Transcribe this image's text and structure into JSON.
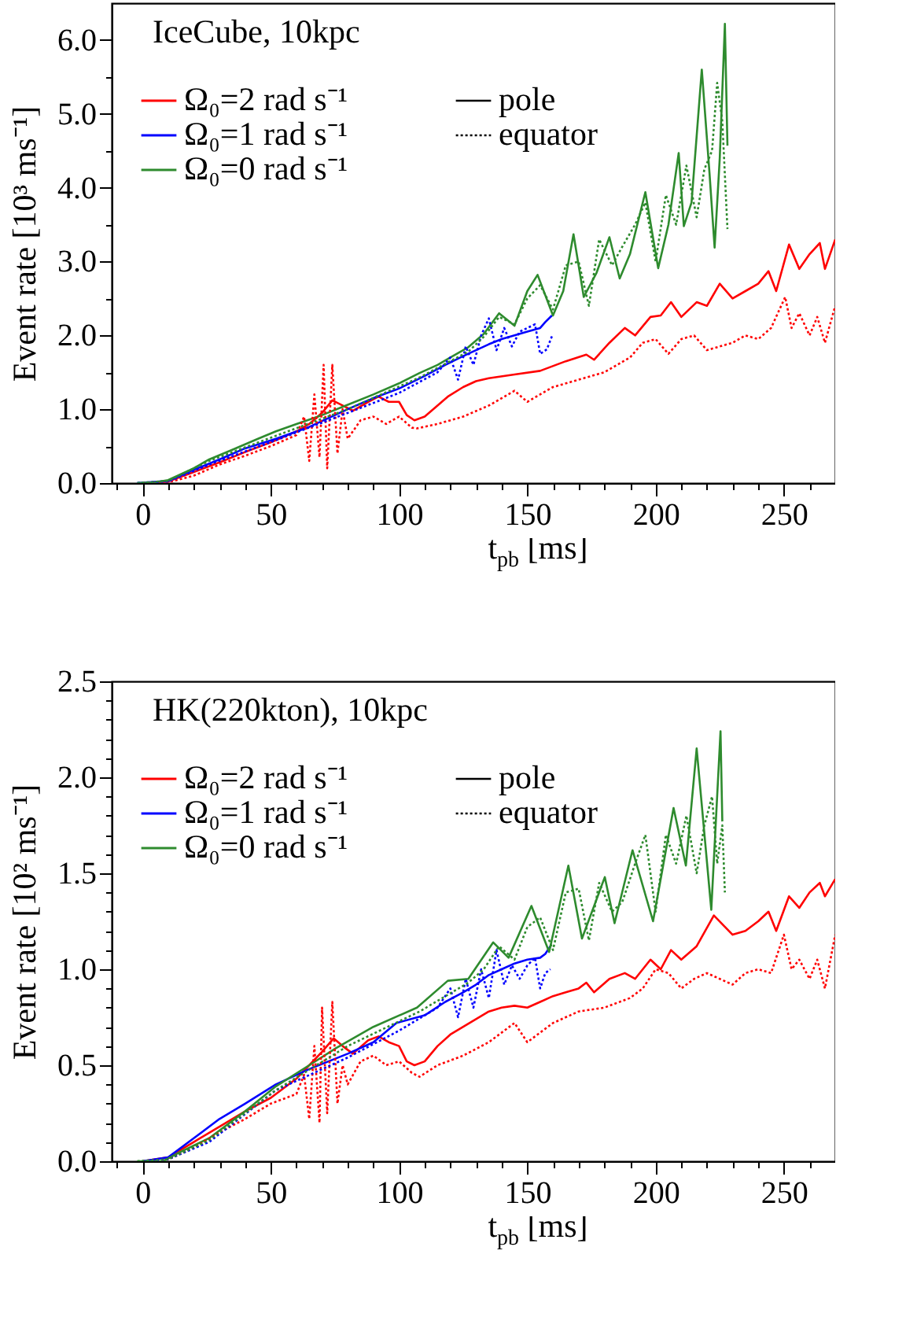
{
  "chart_data": [
    {
      "type": "line",
      "title": "IceCube, 10kpc",
      "xlabel": "t$_{pb}$ [ms]",
      "ylabel": "Event rate [10³ ms⁻¹]",
      "legend": "top left",
      "annotations": [
        "pole",
        "equator"
      ],
      "xlim": [
        -12,
        270
      ],
      "ylim": [
        0,
        6.5
      ],
      "xticks": [
        {
          "value": -10,
          "label": null
        },
        0,
        {
          "value": 10,
          "label": null
        },
        {
          "value": 20,
          "label": null
        },
        {
          "value": 30,
          "label": null
        },
        {
          "value": 40,
          "label": null
        },
        50,
        {
          "value": 60,
          "label": null
        },
        {
          "value": 70,
          "label": null
        },
        {
          "value": 80,
          "label": null
        },
        {
          "value": 90,
          "label": null
        },
        100,
        {
          "value": 110,
          "label": null
        },
        {
          "value": 120,
          "label": null
        },
        {
          "value": 130,
          "label": null
        },
        {
          "value": 140,
          "label": null
        },
        150,
        {
          "value": 160,
          "label": null
        },
        {
          "value": 170,
          "label": null
        },
        {
          "value": 180,
          "label": null
        },
        {
          "value": 190,
          "label": null
        },
        200,
        {
          "value": 210,
          "label": null
        },
        {
          "value": 220,
          "label": null
        },
        {
          "value": 230,
          "label": null
        },
        {
          "value": 240,
          "label": null
        },
        250,
        {
          "value": 260,
          "label": null
        }
      ],
      "yticks": [
        {
          "value": 0,
          "label": "0.0"
        },
        {
          "value": 0.5,
          "label": null
        },
        {
          "value": 1,
          "label": "1.0"
        },
        {
          "value": 1.5,
          "label": null
        },
        {
          "value": 2,
          "label": "2.0"
        },
        {
          "value": 2.5,
          "label": null
        },
        {
          "value": 3,
          "label": "3.0"
        },
        {
          "value": 3.5,
          "label": null
        },
        {
          "value": 4,
          "label": "4.0"
        },
        {
          "value": 4.5,
          "label": null
        },
        {
          "value": 5,
          "label": "5.0"
        },
        {
          "value": 5.5,
          "label": null
        },
        {
          "value": 6,
          "label": "6.0"
        }
      ],
      "series": [
        {
          "name": "Ω₀=2 rad s⁻¹",
          "color": "#ff0000",
          "line_style": "solid",
          "x": [
            0,
            10,
            20,
            30,
            40,
            50,
            60,
            65,
            70,
            74,
            78,
            82,
            88,
            92,
            96,
            100,
            103,
            106,
            110,
            115,
            119,
            125,
            130,
            135,
            145,
            155,
            165,
            173,
            176,
            182,
            188,
            192,
            198,
            202,
            206,
            210,
            216,
            220,
            225,
            230,
            235,
            240,
            244,
            247,
            252,
            256,
            260,
            264,
            266,
            270
          ],
          "values": [
            0,
            0.02,
            0.15,
            0.28,
            0.42,
            0.55,
            0.7,
            0.8,
            0.95,
            1.12,
            1.05,
            0.98,
            1.1,
            1.17,
            1.1,
            1.1,
            0.92,
            0.85,
            0.9,
            1.05,
            1.17,
            1.3,
            1.38,
            1.42,
            1.47,
            1.52,
            1.65,
            1.74,
            1.67,
            1.9,
            2.1,
            2.0,
            2.25,
            2.27,
            2.45,
            2.25,
            2.45,
            2.4,
            2.7,
            2.5,
            2.6,
            2.7,
            2.87,
            2.6,
            3.23,
            2.9,
            3.1,
            3.25,
            2.9,
            3.3
          ]
        },
        {
          "name": "Ω₀=1 rad s⁻¹",
          "color": "#0000ff",
          "line_style": "solid",
          "x": [
            -2,
            10,
            20,
            30,
            40,
            52,
            65,
            80,
            90,
            100,
            110,
            118,
            125,
            130,
            135,
            140,
            145,
            150,
            155,
            157,
            159.6
          ],
          "values": [
            0,
            0.03,
            0.18,
            0.32,
            0.47,
            0.6,
            0.76,
            1.0,
            1.15,
            1.28,
            1.45,
            1.6,
            1.72,
            1.8,
            1.88,
            1.95,
            2.0,
            2.05,
            2.1,
            2.18,
            2.27
          ]
        },
        {
          "name": "Ω₀=0 rad s⁻¹",
          "color": "#2e8b2e",
          "line_style": "solid",
          "x": [
            -2,
            5,
            10,
            15,
            20,
            26,
            35,
            45,
            52,
            60,
            70,
            80,
            90,
            100,
            108,
            115,
            120,
            127,
            133,
            139,
            145,
            150,
            154,
            160,
            164,
            168,
            172,
            177,
            182,
            186,
            190,
            196,
            201,
            205,
            209,
            211,
            214,
            218,
            221,
            223,
            225,
            227,
            228
          ],
          "values": [
            0,
            0.01,
            0.04,
            0.12,
            0.2,
            0.32,
            0.45,
            0.6,
            0.7,
            0.8,
            0.92,
            1.06,
            1.2,
            1.35,
            1.49,
            1.6,
            1.7,
            1.84,
            2.02,
            2.3,
            2.13,
            2.6,
            2.82,
            2.27,
            2.6,
            3.37,
            2.52,
            2.85,
            3.33,
            2.77,
            3.1,
            3.94,
            2.91,
            3.5,
            4.47,
            3.48,
            3.8,
            5.6,
            4.2,
            3.19,
            4.4,
            6.22,
            4.57
          ]
        },
        {
          "color": "#ff0000",
          "line_style": "dotted",
          "x": [
            0,
            10,
            20,
            30,
            40,
            50,
            60,
            63,
            65,
            67,
            69,
            70.6,
            72,
            74,
            76,
            78,
            80,
            85,
            90,
            95,
            100,
            105,
            107,
            115,
            125,
            135,
            145,
            150,
            160,
            170,
            180,
            190,
            195,
            200,
            205,
            210,
            215,
            220,
            225,
            230,
            235,
            240,
            245,
            250.5,
            253,
            256,
            260,
            263,
            266,
            270
          ],
          "values": [
            0,
            0.01,
            0.1,
            0.25,
            0.37,
            0.5,
            0.65,
            0.9,
            0.3,
            1.2,
            0.35,
            1.6,
            0.2,
            1.6,
            0.4,
            1.0,
            0.6,
            0.85,
            0.9,
            0.8,
            0.9,
            0.75,
            0.74,
            0.8,
            0.9,
            1.05,
            1.25,
            1.1,
            1.3,
            1.4,
            1.5,
            1.7,
            1.9,
            1.95,
            1.75,
            1.95,
            2.0,
            1.8,
            1.85,
            1.9,
            2.0,
            1.95,
            2.1,
            2.52,
            2.1,
            2.3,
            2.0,
            2.25,
            1.9,
            2.4
          ]
        },
        {
          "color": "#0000ff",
          "line_style": "dotted",
          "x": [
            -2,
            10,
            26,
            52,
            80,
            100,
            115,
            120,
            123,
            126,
            129,
            132,
            135,
            138,
            141,
            144,
            147,
            150,
            153,
            155,
            157.6,
            159.6
          ],
          "values": [
            0,
            0.02,
            0.25,
            0.58,
            0.95,
            1.22,
            1.5,
            1.7,
            1.4,
            1.85,
            1.6,
            2.0,
            2.23,
            1.8,
            2.1,
            1.85,
            2.05,
            2.1,
            2.15,
            1.75,
            1.81,
            1.99
          ]
        },
        {
          "color": "#2e8b2e",
          "line_style": "dotted",
          "x": [
            -2,
            10,
            26,
            52,
            80,
            108,
            127,
            133,
            139,
            145,
            150,
            155,
            160,
            165,
            170,
            174,
            178,
            183,
            187,
            192,
            196,
            200,
            204,
            208,
            212,
            216,
            219,
            222,
            224,
            226,
            228
          ],
          "values": [
            0,
            0.03,
            0.3,
            0.64,
            1.0,
            1.43,
            1.78,
            1.98,
            2.25,
            2.15,
            2.5,
            2.68,
            2.35,
            2.95,
            3.0,
            2.4,
            3.3,
            2.95,
            3.2,
            3.5,
            3.8,
            3.0,
            3.9,
            3.5,
            4.3,
            3.6,
            4.25,
            4.5,
            5.42,
            4.9,
            3.44
          ]
        }
      ]
    },
    {
      "type": "line",
      "title": "HK(220kton), 10kpc",
      "xlabel": "t$_{pb}$ [ms]",
      "ylabel": "Event rate [10² ms⁻¹]",
      "legend": "top left",
      "annotations": [
        "pole",
        "equator"
      ],
      "xlim": [
        -12,
        270
      ],
      "ylim": [
        0,
        2.5
      ],
      "xticks": [
        {
          "value": -10,
          "label": null
        },
        0,
        {
          "value": 10,
          "label": null
        },
        {
          "value": 20,
          "label": null
        },
        {
          "value": 30,
          "label": null
        },
        {
          "value": 40,
          "label": null
        },
        50,
        {
          "value": 60,
          "label": null
        },
        {
          "value": 70,
          "label": null
        },
        {
          "value": 80,
          "label": null
        },
        {
          "value": 90,
          "label": null
        },
        100,
        {
          "value": 110,
          "label": null
        },
        {
          "value": 120,
          "label": null
        },
        {
          "value": 130,
          "label": null
        },
        {
          "value": 140,
          "label": null
        },
        150,
        {
          "value": 160,
          "label": null
        },
        {
          "value": 170,
          "label": null
        },
        {
          "value": 180,
          "label": null
        },
        {
          "value": 190,
          "label": null
        },
        200,
        {
          "value": 210,
          "label": null
        },
        {
          "value": 220,
          "label": null
        },
        {
          "value": 230,
          "label": null
        },
        {
          "value": 240,
          "label": null
        },
        250,
        {
          "value": 260,
          "label": null
        }
      ],
      "yticks": [
        {
          "value": 0,
          "label": "0.0"
        },
        {
          "value": 0.1,
          "label": null
        },
        {
          "value": 0.2,
          "label": null
        },
        {
          "value": 0.3,
          "label": null
        },
        {
          "value": 0.4,
          "label": null
        },
        {
          "value": 0.5,
          "label": "0.5"
        },
        {
          "value": 0.6,
          "label": null
        },
        {
          "value": 0.7,
          "label": null
        },
        {
          "value": 0.8,
          "label": null
        },
        {
          "value": 0.9,
          "label": null
        },
        {
          "value": 1,
          "label": "1.0"
        },
        {
          "value": 1.1,
          "label": null
        },
        {
          "value": 1.2,
          "label": null
        },
        {
          "value": 1.3,
          "label": null
        },
        {
          "value": 1.4,
          "label": null
        },
        {
          "value": 1.5,
          "label": "1.5"
        },
        {
          "value": 1.6,
          "label": null
        },
        {
          "value": 1.7,
          "label": null
        },
        {
          "value": 1.8,
          "label": null
        },
        {
          "value": 1.9,
          "label": null
        },
        {
          "value": 2,
          "label": "2.0"
        },
        {
          "value": 2.1,
          "label": null
        },
        {
          "value": 2.2,
          "label": null
        },
        {
          "value": 2.3,
          "label": null
        },
        {
          "value": 2.4,
          "label": null
        },
        {
          "value": 2.5,
          "label": "2.5"
        }
      ],
      "series": [
        {
          "name": "Ω₀=2 rad s⁻¹",
          "color": "#ff0000",
          "line_style": "solid",
          "x": [
            0,
            10,
            20,
            30,
            40,
            50,
            60,
            65,
            70,
            74.5,
            78,
            82,
            88,
            92,
            96,
            100,
            103,
            106,
            110,
            115,
            120,
            125,
            130,
            135,
            140,
            145,
            150,
            155,
            160,
            165,
            170,
            173,
            176,
            182,
            188,
            192,
            198,
            202,
            206,
            210,
            216,
            222.7,
            230,
            235,
            240,
            244,
            247,
            252,
            256,
            260,
            264,
            266,
            270
          ],
          "values": [
            0,
            0.02,
            0.1,
            0.18,
            0.26,
            0.33,
            0.43,
            0.5,
            0.57,
            0.64,
            0.6,
            0.56,
            0.63,
            0.65,
            0.62,
            0.6,
            0.52,
            0.5,
            0.52,
            0.6,
            0.66,
            0.7,
            0.74,
            0.78,
            0.8,
            0.81,
            0.8,
            0.83,
            0.86,
            0.88,
            0.9,
            0.93,
            0.88,
            0.95,
            0.98,
            0.95,
            1.05,
            1.0,
            1.1,
            1.05,
            1.12,
            1.28,
            1.18,
            1.2,
            1.25,
            1.3,
            1.2,
            1.38,
            1.32,
            1.4,
            1.45,
            1.38,
            1.47
          ]
        },
        {
          "name": "Ω₀=1 rad s⁻¹",
          "color": "#0000ff",
          "line_style": "solid",
          "x": [
            0,
            10,
            20,
            30,
            40,
            52,
            65,
            80,
            90,
            99,
            110,
            118,
            125,
            130,
            135,
            140,
            145,
            150,
            155,
            157,
            159
          ],
          "values": [
            0,
            0.02,
            0.12,
            0.22,
            0.3,
            0.4,
            0.48,
            0.56,
            0.62,
            0.72,
            0.76,
            0.83,
            0.88,
            0.92,
            0.97,
            1.0,
            1.03,
            1.05,
            1.06,
            1.08,
            1.12
          ]
        },
        {
          "name": "Ω₀=0 rad s⁻¹",
          "color": "#2e8b2e",
          "line_style": "solid",
          "x": [
            -2,
            8,
            15,
            26,
            40,
            52,
            65,
            75.5,
            90,
            107,
            119,
            127,
            136.7,
            142.7,
            151.6,
            158.5,
            166,
            171.3,
            180.2,
            184,
            191,
            199,
            207,
            211.8,
            216,
            221.7,
            225.3,
            226
          ],
          "values": [
            0,
            0,
            0.05,
            0.12,
            0.26,
            0.39,
            0.5,
            0.59,
            0.7,
            0.8,
            0.94,
            0.95,
            1.14,
            1.06,
            1.33,
            1.09,
            1.54,
            1.16,
            1.48,
            1.24,
            1.62,
            1.25,
            1.84,
            1.54,
            2.15,
            1.31,
            2.24,
            1.77
          ]
        },
        {
          "color": "#ff0000",
          "line_style": "dotted",
          "x": [
            0,
            10,
            20,
            30,
            40,
            50,
            60,
            63,
            65,
            67,
            69,
            70,
            72,
            74,
            76,
            78,
            80,
            85,
            90,
            95,
            100,
            105,
            108,
            115,
            125,
            135,
            145,
            150,
            160,
            170,
            180,
            190,
            195,
            200,
            205,
            210,
            215,
            220,
            225,
            230,
            235,
            240,
            245,
            250,
            253,
            256,
            260,
            263,
            266,
            270
          ],
          "values": [
            0,
            0.01,
            0.07,
            0.15,
            0.22,
            0.3,
            0.35,
            0.45,
            0.22,
            0.6,
            0.2,
            0.8,
            0.25,
            0.83,
            0.3,
            0.5,
            0.4,
            0.52,
            0.55,
            0.5,
            0.52,
            0.46,
            0.44,
            0.5,
            0.55,
            0.62,
            0.72,
            0.62,
            0.72,
            0.78,
            0.8,
            0.85,
            0.9,
            1.0,
            0.98,
            0.9,
            0.95,
            0.98,
            0.95,
            0.92,
            0.98,
            1.0,
            0.98,
            1.18,
            1.0,
            1.05,
            0.95,
            1.05,
            0.9,
            1.18
          ]
        },
        {
          "color": "#0000ff",
          "line_style": "dotted",
          "x": [
            0,
            10,
            26,
            52,
            80,
            100,
            115,
            120,
            123,
            126,
            129,
            132,
            135,
            138,
            141,
            144,
            147,
            150,
            153,
            155,
            157,
            159
          ],
          "values": [
            0,
            0.01,
            0.1,
            0.37,
            0.54,
            0.68,
            0.8,
            0.9,
            0.75,
            0.95,
            0.8,
            1.0,
            0.85,
            1.1,
            0.92,
            1.02,
            0.95,
            1.02,
            1.06,
            0.9,
            0.98,
            1.0
          ]
        },
        {
          "color": "#2e8b2e",
          "line_style": "dotted",
          "x": [
            -2,
            10,
            26,
            52,
            80,
            108,
            127,
            133,
            139,
            145,
            150,
            155,
            160,
            165,
            170,
            174,
            178,
            183,
            187,
            192,
            196,
            200,
            204,
            208,
            212,
            216,
            219,
            222,
            224,
            226,
            227
          ],
          "values": [
            0,
            0.01,
            0.11,
            0.37,
            0.6,
            0.78,
            0.93,
            1.0,
            1.12,
            1.05,
            1.22,
            1.27,
            1.1,
            1.4,
            1.42,
            1.15,
            1.45,
            1.3,
            1.35,
            1.55,
            1.7,
            1.3,
            1.7,
            1.55,
            1.8,
            1.5,
            1.75,
            1.9,
            1.55,
            1.75,
            1.4
          ]
        }
      ]
    }
  ]
}
